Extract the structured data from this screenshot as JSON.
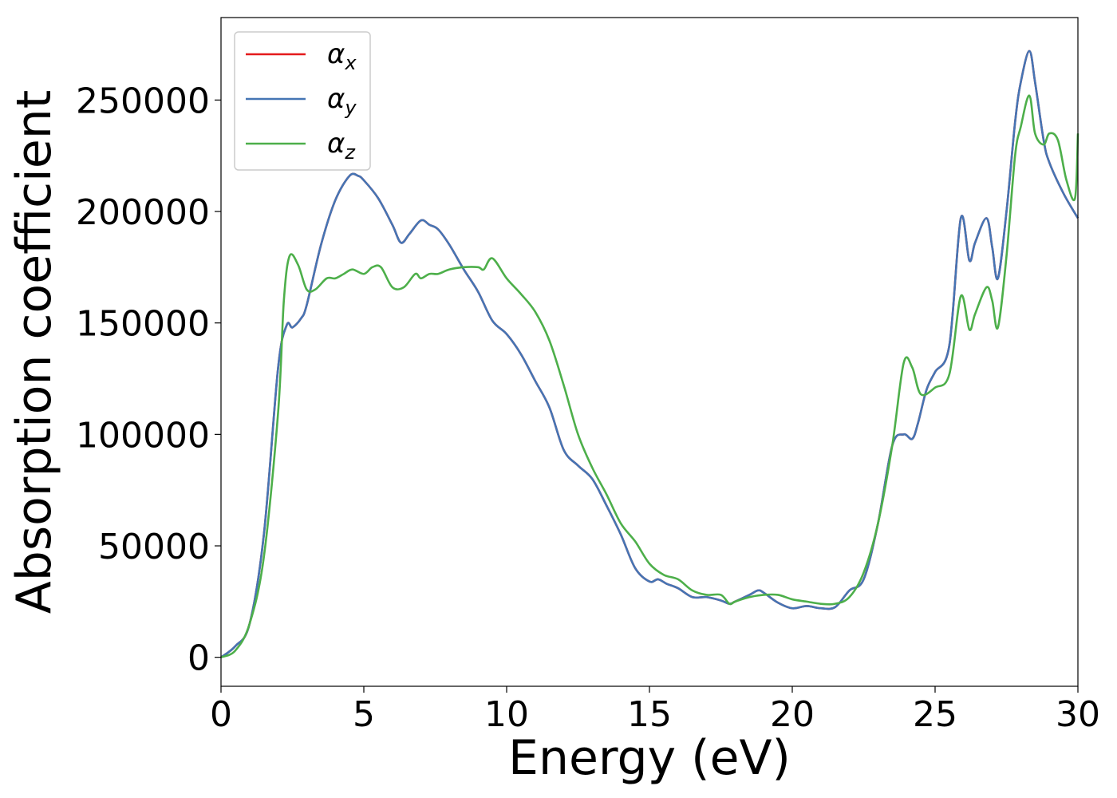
{
  "chart_data": {
    "type": "line",
    "xlabel": "Energy (eV)",
    "ylabel": "Absorption coefficient",
    "xlim": [
      0,
      30
    ],
    "ylim": [
      -13000,
      287000
    ],
    "xticks": [
      0,
      5,
      10,
      15,
      20,
      25,
      30
    ],
    "xtick_labels": [
      "0",
      "5",
      "10",
      "15",
      "20",
      "25",
      "30"
    ],
    "yticks": [
      0,
      50000,
      100000,
      150000,
      200000,
      250000
    ],
    "ytick_labels": [
      "0",
      "50000",
      "100000",
      "150000",
      "200000",
      "250000"
    ],
    "grid": false,
    "legend_position": "top-left",
    "colors": {
      "alpha_x": "#e41a1c",
      "alpha_y": "#4575b4",
      "alpha_z": "#4daf4a"
    },
    "series": [
      {
        "name": "α_x",
        "legend_symbol": "α",
        "legend_sub": "x",
        "color": "#e41a1c",
        "x": [
          0,
          0.5,
          1.0,
          1.5,
          2.0,
          2.3,
          2.5,
          2.8,
          3.0,
          3.5,
          4.0,
          4.5,
          4.8,
          5.0,
          5.5,
          6.0,
          6.3,
          6.6,
          7.0,
          7.3,
          7.6,
          8.0,
          8.5,
          9.0,
          9.5,
          10.0,
          10.5,
          11.0,
          11.5,
          12.0,
          12.5,
          13.0,
          13.5,
          14.0,
          14.5,
          15.0,
          15.3,
          15.6,
          16.0,
          16.5,
          17.0,
          17.5,
          17.8,
          18.0,
          18.5,
          18.8,
          19.0,
          19.5,
          20.0,
          20.5,
          21.0,
          21.5,
          22.0,
          22.5,
          23.0,
          23.5,
          23.9,
          24.2,
          24.4,
          24.7,
          25.0,
          25.5,
          25.9,
          26.2,
          26.4,
          26.8,
          27.0,
          27.2,
          27.5,
          27.8,
          28.0,
          28.3,
          28.5,
          28.8,
          29.0,
          29.5,
          30.0
        ],
        "values": [
          0,
          5000,
          15000,
          55000,
          130000,
          149000,
          148000,
          152000,
          158000,
          185000,
          205000,
          216000,
          216000,
          214000,
          206000,
          194000,
          186000,
          190000,
          196000,
          194000,
          192000,
          185000,
          174000,
          164000,
          151000,
          145000,
          136000,
          124000,
          112000,
          93000,
          86000,
          80000,
          68000,
          55000,
          40000,
          34000,
          35000,
          33000,
          31000,
          27000,
          27000,
          25500,
          24000,
          25000,
          28000,
          30000,
          29000,
          24500,
          22000,
          23000,
          22000,
          22500,
          30000,
          35000,
          60000,
          95000,
          100000,
          98000,
          105000,
          120000,
          128000,
          140000,
          197000,
          178000,
          186000,
          197000,
          184000,
          170000,
          200000,
          240000,
          258000,
          272000,
          258000,
          232000,
          222000,
          208000,
          197000
        ]
      },
      {
        "name": "α_y",
        "legend_symbol": "α",
        "legend_sub": "y",
        "color": "#4575b4",
        "x": [
          0,
          0.5,
          1.0,
          1.5,
          2.0,
          2.3,
          2.5,
          2.8,
          3.0,
          3.5,
          4.0,
          4.5,
          4.8,
          5.0,
          5.5,
          6.0,
          6.3,
          6.6,
          7.0,
          7.3,
          7.6,
          8.0,
          8.5,
          9.0,
          9.5,
          10.0,
          10.5,
          11.0,
          11.5,
          12.0,
          12.5,
          13.0,
          13.5,
          14.0,
          14.5,
          15.0,
          15.3,
          15.6,
          16.0,
          16.5,
          17.0,
          17.5,
          17.8,
          18.0,
          18.5,
          18.8,
          19.0,
          19.5,
          20.0,
          20.5,
          21.0,
          21.5,
          22.0,
          22.5,
          23.0,
          23.5,
          23.9,
          24.2,
          24.4,
          24.7,
          25.0,
          25.5,
          25.9,
          26.2,
          26.4,
          26.8,
          27.0,
          27.2,
          27.5,
          27.8,
          28.0,
          28.3,
          28.5,
          28.8,
          29.0,
          29.5,
          30.0
        ],
        "values": [
          0,
          5000,
          15000,
          55000,
          130000,
          149000,
          148000,
          152000,
          158000,
          185000,
          205000,
          216000,
          216000,
          214000,
          206000,
          194000,
          186000,
          190000,
          196000,
          194000,
          192000,
          185000,
          174000,
          164000,
          151000,
          145000,
          136000,
          124000,
          112000,
          93000,
          86000,
          80000,
          68000,
          55000,
          40000,
          34000,
          35000,
          33000,
          31000,
          27000,
          27000,
          25500,
          24000,
          25000,
          28000,
          30000,
          29000,
          24500,
          22000,
          23000,
          22000,
          22500,
          30000,
          35000,
          60000,
          95000,
          100000,
          98000,
          105000,
          120000,
          128000,
          140000,
          197000,
          178000,
          186000,
          197000,
          184000,
          170000,
          200000,
          240000,
          258000,
          272000,
          258000,
          232000,
          222000,
          208000,
          197000
        ]
      },
      {
        "name": "α_z",
        "legend_symbol": "α",
        "legend_sub": "z",
        "color": "#4daf4a",
        "x": [
          0,
          0.5,
          1.0,
          1.5,
          2.0,
          2.2,
          2.4,
          2.7,
          3.0,
          3.3,
          3.7,
          4.0,
          4.3,
          4.6,
          5.0,
          5.3,
          5.6,
          6.0,
          6.4,
          6.8,
          7.0,
          7.3,
          7.6,
          8.0,
          8.5,
          9.0,
          9.2,
          9.5,
          10.0,
          10.5,
          11.0,
          11.5,
          12.0,
          12.5,
          13.0,
          13.5,
          14.0,
          14.5,
          15.0,
          15.5,
          16.0,
          16.5,
          17.0,
          17.5,
          17.8,
          18.0,
          18.5,
          19.0,
          19.5,
          20.0,
          20.5,
          21.0,
          21.5,
          22.0,
          22.5,
          23.0,
          23.5,
          23.9,
          24.2,
          24.5,
          25.0,
          25.5,
          25.9,
          26.2,
          26.4,
          26.8,
          27.0,
          27.2,
          27.5,
          27.8,
          28.0,
          28.3,
          28.5,
          28.8,
          29.0,
          29.3,
          29.6,
          29.9,
          30.0
        ],
        "values": [
          0,
          3000,
          15000,
          45000,
          110000,
          160000,
          180000,
          176000,
          165000,
          165000,
          170000,
          170000,
          172000,
          174000,
          172000,
          175000,
          175000,
          166000,
          166000,
          172000,
          170000,
          172000,
          172000,
          174000,
          175000,
          175000,
          174000,
          179000,
          170000,
          163000,
          155000,
          142000,
          122000,
          100000,
          85000,
          73000,
          60000,
          52000,
          42000,
          37000,
          35000,
          30000,
          28000,
          28000,
          24000,
          25000,
          27000,
          28000,
          28000,
          26000,
          25000,
          24000,
          24000,
          27000,
          38000,
          60000,
          95000,
          132000,
          130000,
          118000,
          121000,
          127000,
          162000,
          147000,
          154000,
          166000,
          160000,
          148000,
          180000,
          225000,
          238000,
          252000,
          235000,
          230000,
          235000,
          232000,
          214000,
          206000,
          235000
        ]
      }
    ]
  }
}
